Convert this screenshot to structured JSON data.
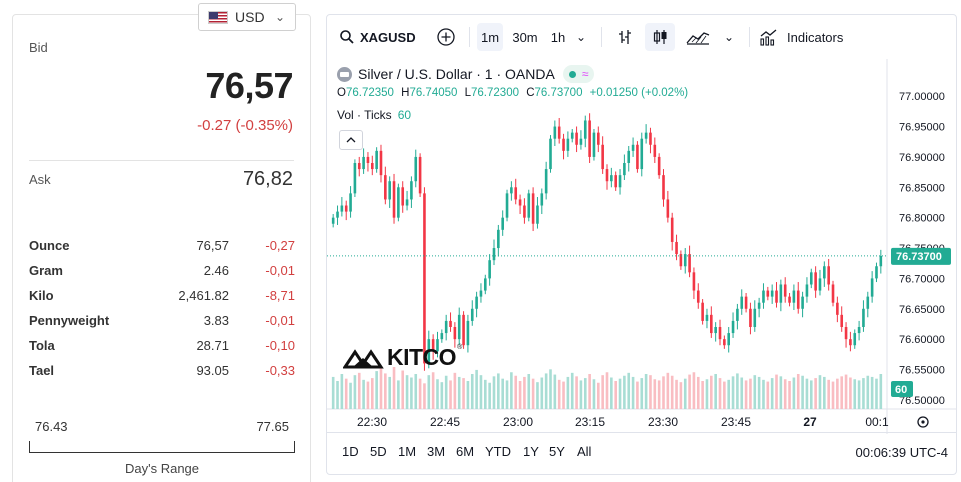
{
  "currency": {
    "selected": "USD"
  },
  "quote": {
    "bid_label": "Bid",
    "bid": "76,57",
    "change": "-0.27 (-0.35%)",
    "ask_label": "Ask",
    "ask": "76,82"
  },
  "units": [
    {
      "name": "Ounce",
      "price": "76,57",
      "change": "-0,27"
    },
    {
      "name": "Gram",
      "price": "2.46",
      "change": "-0,01"
    },
    {
      "name": "Kilo",
      "price": "2,461.82",
      "change": "-8,71"
    },
    {
      "name": "Pennyweight",
      "price": "3.83",
      "change": "-0,01"
    },
    {
      "name": "Tola",
      "price": "28.71",
      "change": "-0,10"
    },
    {
      "name": "Tael",
      "price": "93.05",
      "change": "-0,33"
    }
  ],
  "day_range": {
    "low": "76.43",
    "high": "77.65",
    "title": "Day's Range"
  },
  "toolbar": {
    "symbol": "XAGUSD",
    "intervals": [
      "1m",
      "30m",
      "1h"
    ],
    "active_interval": "1m",
    "indicators_label": "Indicators"
  },
  "legend": {
    "title": "Silver / U.S. Dollar · 1 · OANDA",
    "open_label": "O",
    "open": "76.72350",
    "high_label": "H",
    "high": "76.74050",
    "low_label": "L",
    "low": "76.72300",
    "close_label": "C",
    "close": "76.73700",
    "change": "+0.01250 (+0.02%)",
    "volume_label": "Vol · Ticks",
    "volume_value": "60"
  },
  "brand": "KITCO",
  "range_buttons": [
    "1D",
    "5D",
    "1M",
    "3M",
    "6M",
    "YTD",
    "1Y",
    "5Y",
    "All"
  ],
  "clock": "00:06:39 UTC-4",
  "colors": {
    "up": "#22ab94",
    "down": "#f23645",
    "up_volume": "#a8ddd4",
    "down_volume": "#f9bdc2",
    "negative_text": "#d23f3f"
  },
  "chart_data": {
    "type": "candlestick",
    "symbol": "XAGUSD",
    "interval": "1m",
    "y_ticks": [
      "77.00000",
      "76.95000",
      "76.90000",
      "76.85000",
      "76.80000",
      "76.75000",
      "76.70000",
      "76.65000",
      "76.60000",
      "76.55000",
      "76.50000"
    ],
    "ylim": [
      76.485,
      77.025
    ],
    "x_ticks": [
      "22:30",
      "22:45",
      "23:00",
      "23:15",
      "23:30",
      "23:45",
      "27",
      "00:1"
    ],
    "last_price": "76.73700",
    "last_volume": "60",
    "closes": [
      76.8,
      76.81,
      76.82,
      76.81,
      76.84,
      76.89,
      76.88,
      76.9,
      76.89,
      76.88,
      76.91,
      76.87,
      76.83,
      76.86,
      76.8,
      76.85,
      76.82,
      76.83,
      76.86,
      76.9,
      76.84,
      76.56,
      76.6,
      76.58,
      76.6,
      76.61,
      76.63,
      76.62,
      76.6,
      76.64,
      76.59,
      76.63,
      76.65,
      76.67,
      76.68,
      76.7,
      76.73,
      76.75,
      76.78,
      76.8,
      76.84,
      76.85,
      76.83,
      76.82,
      76.8,
      76.84,
      76.79,
      76.82,
      76.84,
      76.88,
      76.93,
      76.95,
      76.93,
      76.91,
      76.93,
      76.94,
      76.92,
      76.93,
      76.96,
      76.9,
      76.94,
      76.92,
      76.88,
      76.86,
      76.87,
      76.85,
      76.87,
      76.89,
      76.91,
      76.92,
      76.88,
      76.93,
      76.94,
      76.92,
      76.9,
      76.87,
      76.83,
      76.8,
      76.76,
      76.74,
      76.72,
      76.74,
      76.71,
      76.68,
      76.66,
      76.63,
      76.64,
      76.61,
      76.62,
      76.6,
      76.59,
      76.61,
      76.63,
      76.65,
      76.67,
      76.65,
      76.62,
      76.65,
      76.66,
      76.68,
      76.67,
      76.68,
      76.66,
      76.69,
      76.67,
      76.66,
      76.68,
      76.65,
      76.67,
      76.69,
      76.71,
      76.68,
      76.7,
      76.72,
      76.69,
      76.66,
      76.64,
      76.62,
      76.6,
      76.59,
      76.61,
      76.62,
      76.65,
      76.67,
      76.7,
      76.72,
      76.737
    ],
    "volumes": [
      55,
      48,
      60,
      52,
      45,
      58,
      62,
      50,
      47,
      53,
      65,
      70,
      61,
      55,
      72,
      49,
      66,
      58,
      54,
      60,
      52,
      44,
      58,
      63,
      51,
      46,
      57,
      49,
      62,
      55,
      53,
      48,
      60,
      67,
      58,
      50,
      45,
      56,
      61,
      52,
      49,
      63,
      57,
      48,
      55,
      60,
      52,
      46,
      54,
      61,
      68,
      59,
      50,
      47,
      55,
      62,
      56,
      49,
      53,
      60,
      51,
      45,
      58,
      63,
      54,
      48,
      52,
      57,
      62,
      55,
      47,
      53,
      60,
      58,
      51,
      49,
      56,
      62,
      57,
      50,
      46,
      52,
      59,
      63,
      55,
      48,
      51,
      57,
      60,
      53,
      47,
      50,
      56,
      61,
      54,
      49,
      52,
      58,
      55,
      50,
      47,
      53,
      59,
      56,
      51,
      48,
      54,
      60,
      57,
      52,
      49,
      53,
      58,
      55,
      50,
      47,
      52,
      56,
      59,
      54,
      51,
      49,
      53,
      57,
      55,
      52,
      60
    ]
  }
}
